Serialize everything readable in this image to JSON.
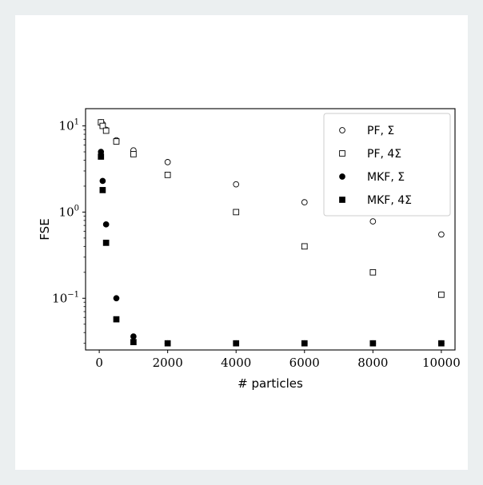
{
  "chart_data": {
    "type": "scatter",
    "xlabel": "# particles",
    "ylabel": "FSE",
    "xlim": [
      -400,
      10400
    ],
    "ylim_log10": [
      -1.6,
      1.2
    ],
    "y_scale": "log",
    "x_ticks": [
      0,
      2000,
      4000,
      6000,
      8000,
      10000
    ],
    "x_tick_labels": [
      "0",
      "2000",
      "4000",
      "6000",
      "8000",
      "10000"
    ],
    "y_ticks": [
      {
        "base": "10",
        "exp": "1",
        "value": 10
      },
      {
        "base": "10",
        "exp": "0",
        "value": 1
      },
      {
        "base": "10",
        "exp": "−1",
        "value": 0.1
      }
    ],
    "legend_position": "top-right",
    "series": [
      {
        "name": "PF, Σ",
        "marker": "circle-open",
        "x": [
          50,
          100,
          200,
          500,
          1000,
          2000,
          4000,
          6000,
          8000,
          10000
        ],
        "y": [
          11.0,
          10.5,
          9.0,
          6.8,
          5.2,
          3.8,
          2.1,
          1.3,
          0.78,
          0.55
        ]
      },
      {
        "name": "PF, 4Σ",
        "marker": "square-open",
        "x": [
          50,
          100,
          200,
          500,
          1000,
          2000,
          4000,
          6000,
          8000,
          10000
        ],
        "y": [
          11.0,
          10.0,
          8.8,
          6.6,
          4.7,
          2.7,
          1.0,
          0.4,
          0.2,
          0.11
        ]
      },
      {
        "name": "MKF, Σ",
        "marker": "circle-filled",
        "x": [
          50,
          100,
          200,
          500,
          1000,
          2000,
          4000,
          6000,
          8000,
          10000
        ],
        "y": [
          5.0,
          2.3,
          0.72,
          0.1,
          0.036,
          0.03,
          0.03,
          0.03,
          0.03,
          0.03
        ]
      },
      {
        "name": "MKF, 4Σ",
        "marker": "square-filled",
        "x": [
          50,
          100,
          200,
          500,
          1000,
          2000,
          4000,
          6000,
          8000,
          10000
        ],
        "y": [
          4.4,
          1.8,
          0.44,
          0.057,
          0.031,
          0.03,
          0.03,
          0.03,
          0.03,
          0.03
        ]
      }
    ]
  }
}
